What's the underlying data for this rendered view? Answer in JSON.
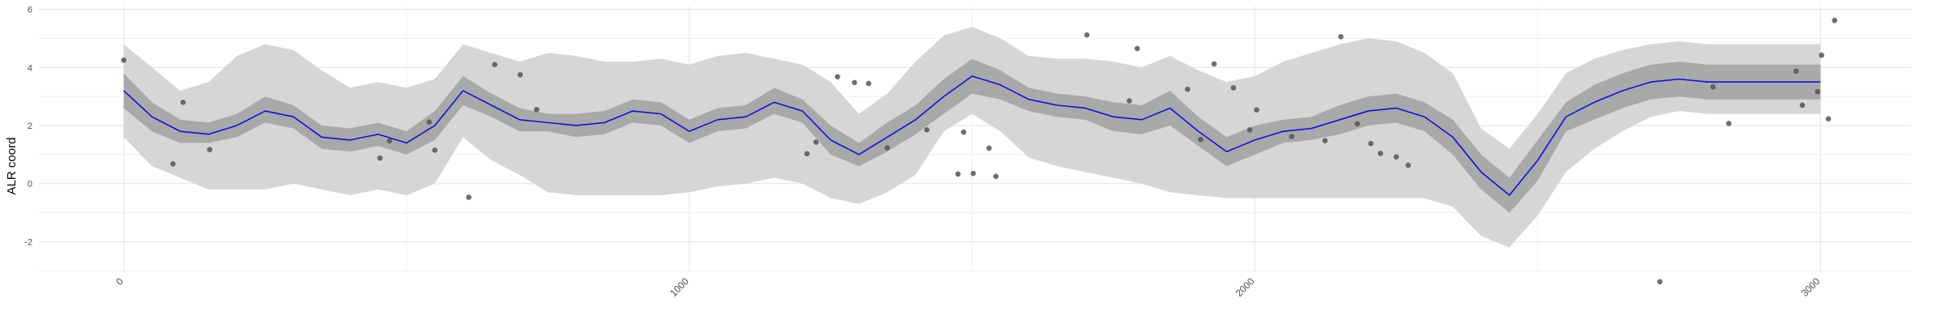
{
  "chart_data": {
    "type": "line",
    "title": "",
    "xlabel": "",
    "ylabel": "ALR coord",
    "xlim": [
      -150,
      3160
    ],
    "ylim": [
      -3.05,
      6.1
    ],
    "x_ticks": [
      0,
      1000,
      2000,
      3000
    ],
    "x_tick_labels": [
      "0",
      "1000",
      "2000",
      "3000"
    ],
    "x_minor_ticks": [
      500,
      1500,
      2500
    ],
    "y_ticks": [
      -2,
      0,
      2,
      4,
      6
    ],
    "y_tick_labels": [
      "-2",
      "0",
      "2",
      "4",
      "6"
    ],
    "y_minor_ticks": [
      -3,
      -1,
      1,
      3,
      5
    ],
    "grid": true,
    "colors": {
      "line": "#1010e0",
      "inner_band": "#a9a9a9",
      "outer_band": "#d6d6d6",
      "points": "#555555",
      "grid": "#ebebeb"
    },
    "fit": {
      "x": [
        0,
        50,
        100,
        150,
        200,
        250,
        300,
        350,
        400,
        450,
        500,
        550,
        600,
        650,
        700,
        750,
        800,
        850,
        900,
        950,
        1000,
        1050,
        1100,
        1150,
        1200,
        1250,
        1300,
        1350,
        1400,
        1450,
        1500,
        1550,
        1600,
        1650,
        1700,
        1750,
        1800,
        1850,
        1900,
        1950,
        2000,
        2050,
        2100,
        2150,
        2200,
        2250,
        2300,
        2350,
        2400,
        2450,
        2500,
        2550,
        2600,
        2650,
        2700,
        2750,
        2800,
        2850,
        2900,
        2950,
        3000
      ],
      "y": [
        3.2,
        2.3,
        1.8,
        1.7,
        2.0,
        2.5,
        2.3,
        1.6,
        1.5,
        1.7,
        1.4,
        2.0,
        3.2,
        2.7,
        2.2,
        2.1,
        2.0,
        2.1,
        2.5,
        2.4,
        1.8,
        2.2,
        2.3,
        2.8,
        2.5,
        1.5,
        1.0,
        1.6,
        2.2,
        3.0,
        3.7,
        3.4,
        2.9,
        2.7,
        2.6,
        2.3,
        2.2,
        2.6,
        1.8,
        1.1,
        1.5,
        1.8,
        1.9,
        2.2,
        2.5,
        2.6,
        2.3,
        1.6,
        0.4,
        -0.4,
        0.8,
        2.3,
        2.8,
        3.2,
        3.5,
        3.6,
        3.5,
        3.5,
        3.5,
        3.5,
        3.5
      ],
      "lower": [
        2.6,
        1.8,
        1.4,
        1.4,
        1.6,
        2.1,
        1.9,
        1.2,
        1.1,
        1.3,
        1.0,
        1.5,
        2.7,
        2.3,
        1.8,
        1.8,
        1.6,
        1.7,
        2.1,
        2.0,
        1.4,
        1.8,
        1.9,
        2.4,
        2.1,
        1.0,
        0.6,
        1.1,
        1.7,
        2.4,
        3.1,
        2.9,
        2.5,
        2.3,
        2.2,
        1.8,
        1.7,
        2.0,
        1.3,
        0.6,
        1.0,
        1.4,
        1.5,
        1.7,
        2.0,
        2.1,
        1.8,
        1.0,
        -0.2,
        -1.0,
        0.1,
        1.8,
        2.2,
        2.6,
        2.9,
        3.0,
        2.9,
        2.9,
        2.9,
        2.9,
        2.9
      ],
      "upper": [
        3.8,
        2.8,
        2.2,
        2.1,
        2.4,
        3.0,
        2.7,
        2.0,
        1.9,
        2.1,
        1.8,
        2.5,
        3.7,
        3.1,
        2.6,
        2.4,
        2.4,
        2.5,
        2.9,
        2.8,
        2.2,
        2.6,
        2.7,
        3.3,
        2.9,
        2.0,
        1.4,
        2.1,
        2.7,
        3.6,
        4.3,
        3.9,
        3.3,
        3.1,
        3.0,
        2.8,
        2.7,
        3.2,
        2.3,
        1.6,
        2.0,
        2.2,
        2.3,
        2.7,
        3.0,
        3.1,
        2.8,
        2.2,
        1.0,
        0.2,
        1.5,
        2.8,
        3.4,
        3.8,
        4.1,
        4.2,
        4.1,
        4.1,
        4.1,
        4.1,
        4.1
      ],
      "lower2": [
        1.6,
        0.6,
        0.2,
        -0.2,
        -0.2,
        -0.2,
        0.0,
        -0.2,
        -0.4,
        -0.2,
        -0.4,
        0.0,
        1.6,
        0.8,
        0.3,
        -0.3,
        -0.4,
        -0.4,
        -0.4,
        -0.4,
        -0.3,
        -0.1,
        0.0,
        0.2,
        0.0,
        -0.5,
        -0.7,
        -0.3,
        0.3,
        1.8,
        2.4,
        1.8,
        0.9,
        0.6,
        0.4,
        0.2,
        0.0,
        -0.3,
        -0.4,
        -0.5,
        -0.5,
        -0.5,
        -0.5,
        -0.5,
        -0.5,
        -0.5,
        -0.5,
        -0.8,
        -1.8,
        -2.2,
        -1.1,
        0.4,
        1.2,
        1.8,
        2.3,
        2.5,
        2.4,
        2.4,
        2.4,
        2.4,
        2.4
      ],
      "upper2": [
        4.8,
        4.0,
        3.2,
        3.5,
        4.4,
        4.8,
        4.6,
        3.9,
        3.3,
        3.5,
        3.3,
        3.6,
        4.8,
        4.5,
        4.2,
        4.5,
        4.4,
        4.2,
        4.2,
        4.3,
        4.1,
        4.4,
        4.5,
        4.3,
        4.1,
        3.5,
        2.4,
        3.1,
        4.2,
        5.1,
        5.4,
        5.0,
        4.4,
        4.3,
        4.3,
        4.2,
        4.0,
        4.4,
        3.9,
        3.5,
        3.7,
        4.2,
        4.5,
        4.8,
        5.0,
        4.9,
        4.5,
        3.8,
        1.9,
        1.2,
        2.4,
        3.8,
        4.3,
        4.6,
        4.8,
        4.9,
        4.8,
        4.8,
        4.8,
        4.8,
        4.8
      ]
    },
    "points": {
      "x": [
        0,
        87,
        105,
        152,
        453,
        470,
        540,
        550,
        610,
        656,
        701,
        730,
        1208,
        1224,
        1262,
        1292,
        1317,
        1350,
        1420,
        1475,
        1485,
        1502,
        1530,
        1542,
        1703,
        1778,
        1792,
        1881,
        1904,
        1928,
        1962,
        1991,
        2003,
        2065,
        2124,
        2152,
        2181,
        2205,
        2222,
        2250,
        2271,
        2716,
        2810,
        2838,
        2957,
        2968,
        2995,
        3002,
        3014,
        3025
      ],
      "y": [
        4.25,
        0.68,
        2.8,
        1.17,
        0.88,
        1.47,
        2.12,
        1.15,
        -0.47,
        4.1,
        3.75,
        2.55,
        1.03,
        1.43,
        3.68,
        3.48,
        3.45,
        1.23,
        1.85,
        0.33,
        1.77,
        0.35,
        1.22,
        0.25,
        5.12,
        2.85,
        4.65,
        3.25,
        1.52,
        4.12,
        3.3,
        1.85,
        2.54,
        1.62,
        1.48,
        5.06,
        2.06,
        1.38,
        1.04,
        0.92,
        0.63,
        -3.38,
        3.33,
        2.07,
        3.87,
        2.7,
        3.17,
        4.42,
        2.23,
        5.62
      ]
    }
  }
}
